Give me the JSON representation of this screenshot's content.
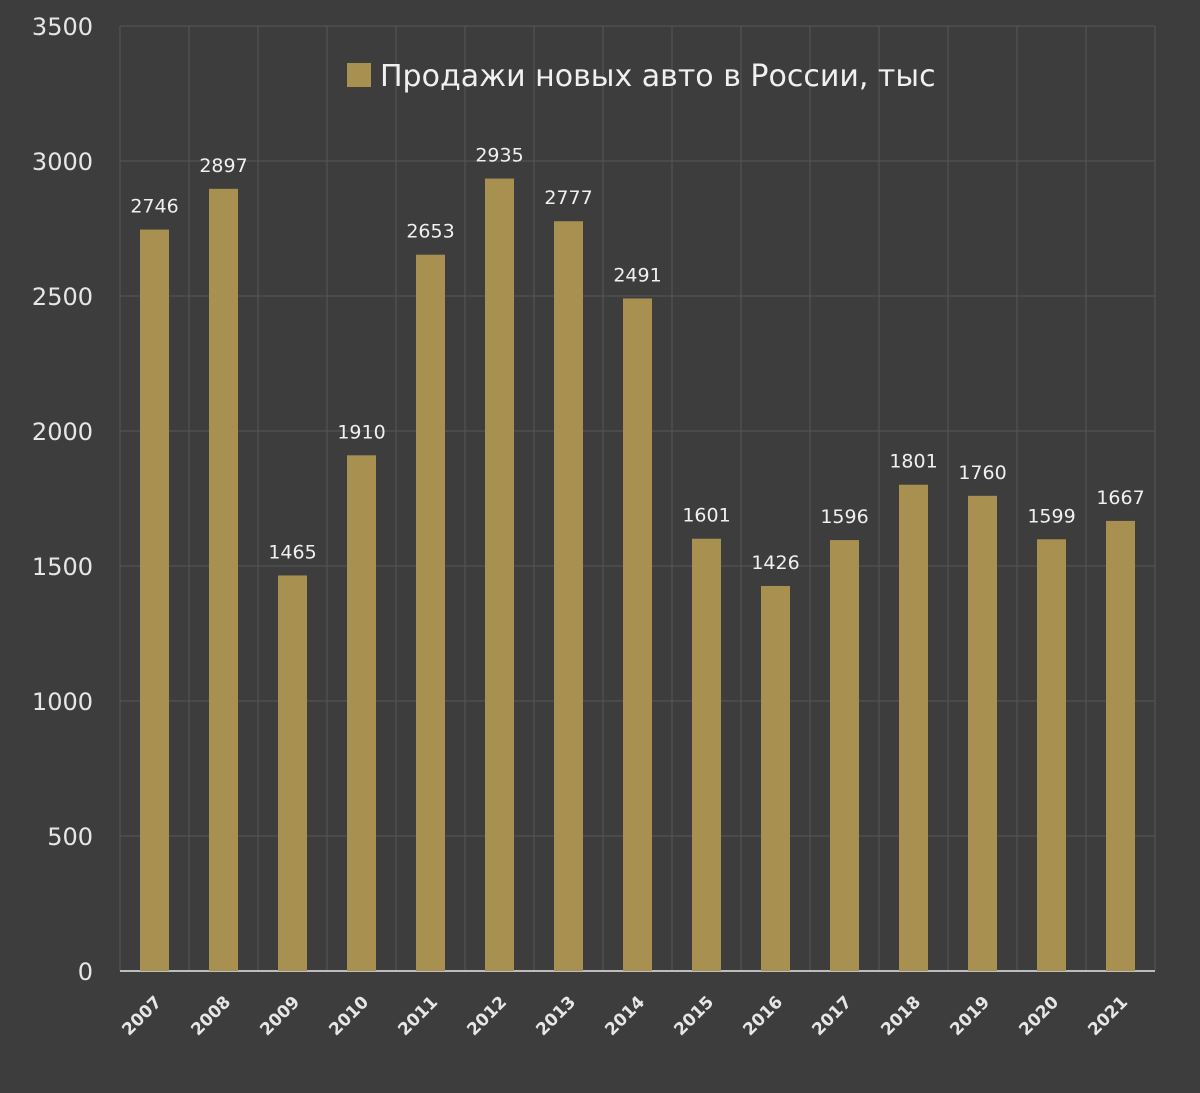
{
  "chart_data": {
    "type": "bar",
    "title": "",
    "xlabel": "",
    "ylabel": "",
    "legend": {
      "position": "top-center"
    },
    "grid": true,
    "ylim": [
      0,
      3500
    ],
    "yticks": [
      0,
      500,
      1000,
      1500,
      2000,
      2500,
      3000,
      3500
    ],
    "categories": [
      "2007",
      "2008",
      "2009",
      "2010",
      "2011",
      "2012",
      "2013",
      "2014",
      "2015",
      "2016",
      "2017",
      "2018",
      "2019",
      "2020",
      "2021"
    ],
    "series": [
      {
        "name": "Продажи новых авто в России, тыс",
        "values": [
          2746,
          2897,
          1465,
          1910,
          2653,
          2935,
          2777,
          2491,
          1601,
          1426,
          1596,
          1801,
          1760,
          1599,
          1667
        ]
      }
    ]
  },
  "colors": {
    "background": "#3d3d3d",
    "bar": "#a89050",
    "grid": "#565656",
    "axis_line": "#bdbdbd",
    "tick_text": "#e6e6e6",
    "label_text": "#f0f0f0"
  }
}
